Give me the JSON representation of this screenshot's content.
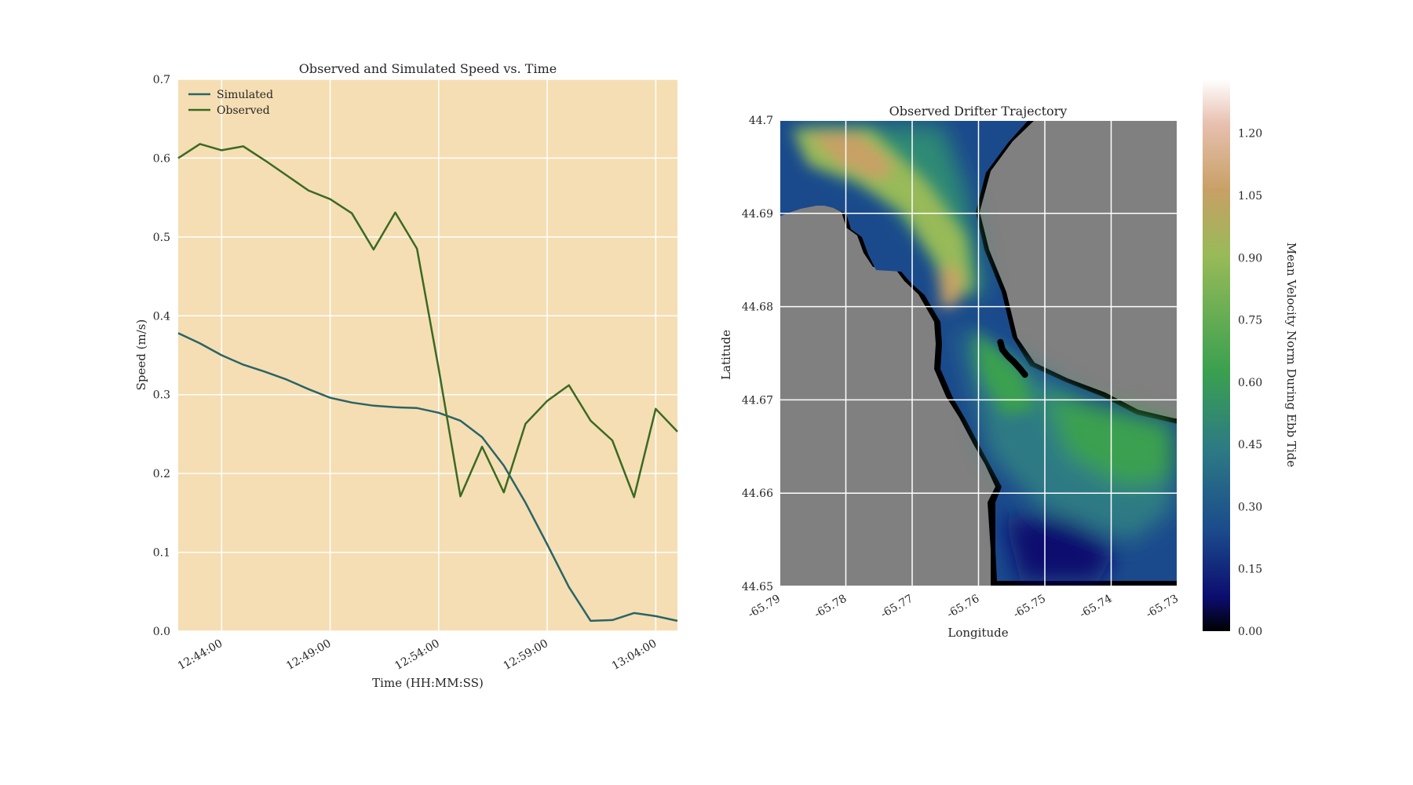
{
  "chart_data": [
    {
      "type": "line",
      "title": "Observed and Simulated Speed vs. Time",
      "xlabel": "Time (HH:MM:SS)",
      "ylabel": "Speed (m/s)",
      "ylim": [
        0,
        0.7
      ],
      "xlim": [
        "12:42:00",
        "13:05:00"
      ],
      "yticks": [
        "0.0",
        "0.1",
        "0.2",
        "0.3",
        "0.4",
        "0.5",
        "0.6",
        "0.7"
      ],
      "xticks": [
        "12:44:00",
        "12:49:00",
        "12:54:00",
        "12:59:00",
        "13:04:00"
      ],
      "grid": true,
      "background": "#f5deb3",
      "legend_position": "top-left",
      "x": [
        "12:42:00",
        "12:43:00",
        "12:44:00",
        "12:45:00",
        "12:46:00",
        "12:47:00",
        "12:48:00",
        "12:49:00",
        "12:50:00",
        "12:51:00",
        "12:52:00",
        "12:53:00",
        "12:54:00",
        "12:55:00",
        "12:56:00",
        "12:57:00",
        "12:58:00",
        "12:59:00",
        "13:00:00",
        "13:01:00",
        "13:02:00",
        "13:03:00",
        "13:04:00",
        "13:05:00"
      ],
      "series": [
        {
          "name": "Simulated",
          "color": "#2a6467",
          "values": [
            0.378,
            0.365,
            0.35,
            0.338,
            0.329,
            0.319,
            0.307,
            0.296,
            0.29,
            0.286,
            0.284,
            0.283,
            0.277,
            0.267,
            0.246,
            0.21,
            0.163,
            0.11,
            0.056,
            0.013,
            0.014,
            0.023,
            0.019,
            0.013
          ]
        },
        {
          "name": "Observed",
          "color": "#3a6a24",
          "values": [
            0.6,
            0.618,
            0.61,
            0.615,
            0.597,
            0.578,
            0.559,
            0.548,
            0.53,
            0.484,
            0.531,
            0.485,
            0.333,
            0.171,
            0.234,
            0.176,
            0.263,
            0.292,
            0.312,
            0.267,
            0.242,
            0.17,
            0.282,
            0.253
          ]
        }
      ]
    },
    {
      "type": "heatmap",
      "title": "Observed Drifter Trajectory",
      "xlabel": "Longitude",
      "ylabel": "Latitude",
      "xlim": [
        -65.79,
        -65.73
      ],
      "ylim": [
        44.65,
        44.7
      ],
      "xticks": [
        "-65.79",
        "-65.78",
        "-65.77",
        "-65.76",
        "-65.75",
        "-65.74",
        "-65.73"
      ],
      "yticks": [
        "44.65",
        "44.66",
        "44.67",
        "44.68",
        "44.69",
        "44.7"
      ],
      "grid": true,
      "land_color": "#808080",
      "colorbar": {
        "label": "Mean Velocity Norm During Ebb Tide",
        "range": [
          0,
          1.33
        ],
        "ticks": [
          "0.00",
          "0.15",
          "0.30",
          "0.45",
          "0.60",
          "0.75",
          "0.90",
          "1.05",
          "1.20"
        ],
        "colormap": [
          "#000000",
          "#0c0c6e",
          "#1b4a8c",
          "#2d7a84",
          "#3aa050",
          "#98ba58",
          "#c8a066",
          "#e8c0b0",
          "#ffffff"
        ]
      },
      "trajectory": {
        "color": "#000000",
        "lon": [
          -65.7567,
          -65.7564,
          -65.7556,
          -65.7547,
          -65.7538,
          -65.753
        ],
        "lat": [
          44.6762,
          44.6754,
          44.6747,
          44.6741,
          44.6734,
          44.6727
        ]
      }
    }
  ]
}
